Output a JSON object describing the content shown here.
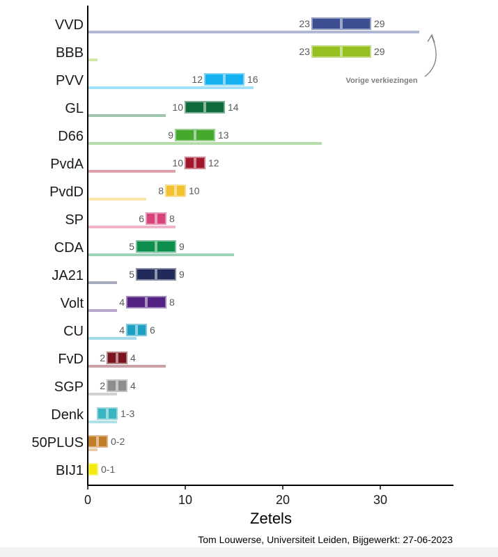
{
  "chart_data": {
    "type": "bar",
    "xlabel": "Zetels",
    "xlim": [
      0,
      37
    ],
    "xticks": [
      0,
      10,
      20,
      30
    ],
    "source": "Tom Louwerse, Universiteit Leiden, Bijgewerkt: 27-06-2023",
    "annotation": "Vorige verkiezingen",
    "categories": [
      "VVD",
      "BBB",
      "PVV",
      "GL",
      "D66",
      "PvdA",
      "PvdD",
      "SP",
      "CDA",
      "JA21",
      "Volt",
      "CU",
      "FvD",
      "SGP",
      "Denk",
      "50PLUS",
      "BIJ1"
    ],
    "series": [
      {
        "name": "Vorige verkiezingen",
        "values": [
          34,
          1,
          17,
          8,
          24,
          9,
          6,
          9,
          15,
          3,
          3,
          5,
          8,
          3,
          3,
          1,
          0
        ]
      },
      {
        "name": "",
        "low": [
          23,
          23,
          12,
          10,
          9,
          10,
          8,
          6,
          5,
          5,
          4,
          4,
          2,
          2,
          1,
          0,
          0
        ],
        "mid": [
          26,
          26,
          14,
          12,
          11,
          11,
          9,
          7,
          7,
          7,
          6,
          5,
          3,
          3,
          2,
          1,
          0
        ],
        "high": [
          29,
          29,
          16,
          14,
          13,
          12,
          10,
          8,
          9,
          9,
          8,
          6,
          4,
          4,
          3,
          2,
          1
        ]
      }
    ],
    "labels": [
      {
        "left": "23",
        "right": "29"
      },
      {
        "left": "23",
        "right": "29"
      },
      {
        "left": "12",
        "right": "16"
      },
      {
        "left": "10",
        "right": "14"
      },
      {
        "left": "9",
        "right": "13"
      },
      {
        "left": "10",
        "right": "12"
      },
      {
        "left": "8",
        "right": "10"
      },
      {
        "left": "6",
        "right": "8"
      },
      {
        "left": "5",
        "right": "9"
      },
      {
        "left": "5",
        "right": "9"
      },
      {
        "left": "4",
        "right": "8"
      },
      {
        "left": "4",
        "right": "6"
      },
      {
        "left": "2",
        "right": "4"
      },
      {
        "left": "2",
        "right": "4"
      },
      {
        "left": "",
        "right": "1-3"
      },
      {
        "left": "",
        "right": "0-2"
      },
      {
        "left": "",
        "right": "0-1"
      }
    ],
    "colors": {
      "VVD": "#3d4e93",
      "BBB": "#94c11f",
      "PVV": "#15b0ef",
      "GL": "#0e6b3a",
      "D66": "#45a92e",
      "PvdA": "#a3152a",
      "PvdD": "#f2c12e",
      "SP": "#d8417a",
      "CDA": "#0d8f4e",
      "JA21": "#212a5a",
      "Volt": "#532384",
      "CU": "#1ba1c4",
      "FvD": "#7a1421",
      "SGP": "#8d8d8d",
      "Denk": "#38b5c0",
      "50PLUS": "#c17c27",
      "BIJ1": "#f4ea0c"
    }
  }
}
